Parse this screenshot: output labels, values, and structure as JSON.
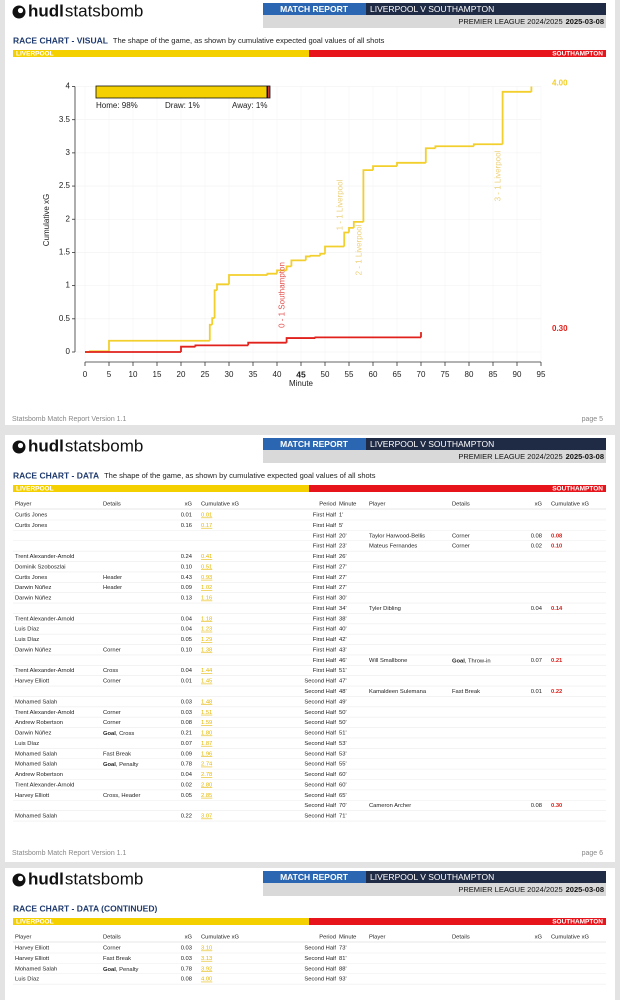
{
  "header": {
    "logo": [
      "hudl",
      "statsbomb"
    ],
    "report": "MATCH REPORT",
    "match": "LIVERPOOL V SOUTHAMPTON",
    "competition": "PREMIER LEAGUE 2024/2025",
    "date": "2025-03-08"
  },
  "teams": [
    "LIVERPOOL",
    "SOUTHAMPTON"
  ],
  "footer_version": "Statsbomb Match Report Version 1.1",
  "table_columns": [
    "Player",
    "Details",
    "xG",
    "Cumulative xG",
    "Period",
    "Minute",
    "Player",
    "Details",
    "xG",
    "Cumulative xG"
  ],
  "pages": [
    {
      "title": "RACE CHART - VISUAL",
      "subtitle": "The shape of the game, as shown by cumulative expected goal values of all shots",
      "page": "page 5"
    },
    {
      "title": "RACE CHART - DATA",
      "subtitle": "The shape of the game, as shown by cumulative expected goal values of all shots",
      "page": "page 6",
      "rows": [
        [
          "Curtis Jones",
          null,
          "0.01",
          "0.01",
          "First Half",
          "1'",
          null,
          null,
          null,
          null
        ],
        [
          "Curtis Jones",
          null,
          "0.16",
          "0.17",
          "First Half",
          "5'",
          null,
          null,
          null,
          null
        ],
        [
          null,
          null,
          null,
          null,
          "First Half",
          "20'",
          "Taylor Harwood-Bellis",
          "Corner",
          "0.08",
          "0.08"
        ],
        [
          null,
          null,
          null,
          null,
          "First Half",
          "23'",
          "Mateus Fernandes",
          "Corner",
          "0.02",
          "0.10"
        ],
        [
          "Trent Alexander-Arnold",
          null,
          "0.24",
          "0.41",
          "First Half",
          "26'",
          null,
          null,
          null,
          null
        ],
        [
          "Dominik Szoboszlai",
          null,
          "0.10",
          "0.51",
          "First Half",
          "27'",
          null,
          null,
          null,
          null
        ],
        [
          "Curtis Jones",
          "Header",
          "0.43",
          "0.93",
          "First Half",
          "27'",
          null,
          null,
          null,
          null
        ],
        [
          "Darwin Núñez",
          "Header",
          "0.09",
          "1.02",
          "First Half",
          "27'",
          null,
          null,
          null,
          null
        ],
        [
          "Darwin Núñez",
          null,
          "0.13",
          "1.16",
          "First Half",
          "30'",
          null,
          null,
          null,
          null
        ],
        [
          null,
          null,
          null,
          null,
          "First Half",
          "34'",
          "Tyler Dibling",
          null,
          "0.04",
          "0.14"
        ],
        [
          "Trent Alexander-Arnold",
          null,
          "0.04",
          "1.18",
          "First Half",
          "38'",
          null,
          null,
          null,
          null
        ],
        [
          "Luis Díaz",
          null,
          "0.04",
          "1.23",
          "First Half",
          "40'",
          null,
          null,
          null,
          null
        ],
        [
          "Luis Díaz",
          null,
          "0.05",
          "1.29",
          "First Half",
          "42'",
          null,
          null,
          null,
          null
        ],
        [
          "Darwin Núñez",
          "Corner",
          "0.10",
          "1.38",
          "First Half",
          "43'",
          null,
          null,
          null,
          null
        ],
        [
          null,
          null,
          null,
          null,
          "First Half",
          "46'",
          "Will Smallbone",
          "Goal, Throw-in",
          "0.07",
          "0.21"
        ],
        [
          "Trent Alexander-Arnold",
          "Cross",
          "0.04",
          "1.44",
          "First Half",
          "51'",
          null,
          null,
          null,
          null
        ],
        [
          "Harvey Elliott",
          "Corner",
          "0.01",
          "1.45",
          "Second Half",
          "47'",
          null,
          null,
          null,
          null
        ],
        [
          null,
          null,
          null,
          null,
          "Second Half",
          "48'",
          "Kamaldeen Sulemana",
          "Fast Break",
          "0.01",
          "0.22"
        ],
        [
          "Mohamed Salah",
          null,
          "0.03",
          "1.48",
          "Second Half",
          "49'",
          null,
          null,
          null,
          null
        ],
        [
          "Trent Alexander-Arnold",
          "Corner",
          "0.03",
          "1.51",
          "Second Half",
          "50'",
          null,
          null,
          null,
          null
        ],
        [
          "Andrew Robertson",
          "Corner",
          "0.08",
          "1.59",
          "Second Half",
          "50'",
          null,
          null,
          null,
          null
        ],
        [
          "Darwin Núñez",
          "Goal, Cross",
          "0.21",
          "1.80",
          "Second Half",
          "51'",
          null,
          null,
          null,
          null
        ],
        [
          "Luis Díaz",
          null,
          "0.07",
          "1.87",
          "Second Half",
          "53'",
          null,
          null,
          null,
          null
        ],
        [
          "Mohamed Salah",
          "Fast Break",
          "0.09",
          "1.96",
          "Second Half",
          "53'",
          null,
          null,
          null,
          null
        ],
        [
          "Mohamed Salah",
          "Goal, Penalty",
          "0.78",
          "2.74",
          "Second Half",
          "55'",
          null,
          null,
          null,
          null
        ],
        [
          "Andrew Robertson",
          null,
          "0.04",
          "2.78",
          "Second Half",
          "60'",
          null,
          null,
          null,
          null
        ],
        [
          "Trent Alexander-Arnold",
          null,
          "0.02",
          "2.80",
          "Second Half",
          "60'",
          null,
          null,
          null,
          null
        ],
        [
          "Harvey Elliott",
          "Cross, Header",
          "0.05",
          "2.85",
          "Second Half",
          "65'",
          null,
          null,
          null,
          null
        ],
        [
          null,
          null,
          null,
          null,
          "Second Half",
          "70'",
          "Cameron Archer",
          null,
          "0.08",
          "0.30"
        ],
        [
          "Mohamed Salah",
          null,
          "0.22",
          "3.07",
          "Second Half",
          "71'",
          null,
          null,
          null,
          null
        ]
      ]
    },
    {
      "title": "RACE CHART - DATA (CONTINUED)",
      "rows": [
        [
          "Harvey Elliott",
          "Corner",
          "0.03",
          "3.10",
          "Second Half",
          "73'",
          null,
          null,
          null,
          null
        ],
        [
          "Harvey Elliott",
          "Fast Break",
          "0.03",
          "3.13",
          "Second Half",
          "81'",
          null,
          null,
          null,
          null
        ],
        [
          "Mohamed Salah",
          "Goal, Penalty",
          "0.78",
          "3.92",
          "Second Half",
          "88'",
          null,
          null,
          null,
          null
        ],
        [
          "Luis Díaz",
          null,
          "0.08",
          "4.00",
          "Second Half",
          "93'",
          null,
          null,
          null,
          null
        ]
      ]
    }
  ],
  "chart_data": {
    "type": "line",
    "step": true,
    "xlabel": "Minute",
    "ylabel": "Cumulative xG",
    "xlim": [
      0,
      95
    ],
    "ylim": [
      0,
      4
    ],
    "xticks": [
      0,
      5,
      10,
      15,
      20,
      25,
      30,
      35,
      40,
      45,
      50,
      55,
      60,
      65,
      70,
      75,
      80,
      85,
      90,
      95
    ],
    "highlight_xtick": 45,
    "yticks": [
      0,
      0.5,
      1,
      1.5,
      2,
      2.5,
      3,
      3.5,
      4
    ],
    "grid": true,
    "series": [
      {
        "color": "#f2cf2c",
        "end_label": "4.00",
        "x": [
          0,
          1,
          5,
          26,
          26.5,
          27,
          27.5,
          30,
          38,
          40,
          42,
          43,
          46,
          47,
          49,
          50,
          50,
          54,
          55,
          56,
          58,
          60,
          60,
          65,
          71,
          73,
          81,
          87,
          93
        ],
        "values": [
          0,
          0.01,
          0.17,
          0.41,
          0.51,
          0.93,
          1.02,
          1.16,
          1.18,
          1.23,
          1.29,
          1.38,
          1.44,
          1.45,
          1.48,
          1.51,
          1.59,
          1.8,
          1.87,
          1.96,
          2.74,
          2.78,
          2.8,
          2.85,
          3.07,
          3.1,
          3.13,
          3.92,
          4.0
        ]
      },
      {
        "color": "#e1211c",
        "end_label": "0.30",
        "x": [
          0,
          20,
          23,
          34,
          42,
          48,
          70
        ],
        "values": [
          0,
          0.08,
          0.1,
          0.14,
          0.21,
          0.22,
          0.3
        ]
      }
    ],
    "annotations": [
      {
        "text": "0 - 1 Southampton",
        "x": 42,
        "color": "#e4534f"
      },
      {
        "text": "1 - 1 Liverpool",
        "x": 54,
        "color": "#eed27d"
      },
      {
        "text": "2 - 1 Liverpool",
        "x": 58,
        "color": "#eed27d"
      },
      {
        "text": "3 - 1 Liverpool",
        "x": 87,
        "color": "#eed27d"
      }
    ],
    "win_probability": {
      "labels": [
        "Home: 98%",
        "Draw: 1%",
        "Away: 1%"
      ],
      "values": [
        98,
        1,
        1
      ],
      "colors": [
        "#f5d000",
        "#111111",
        "#e1211c"
      ]
    }
  }
}
